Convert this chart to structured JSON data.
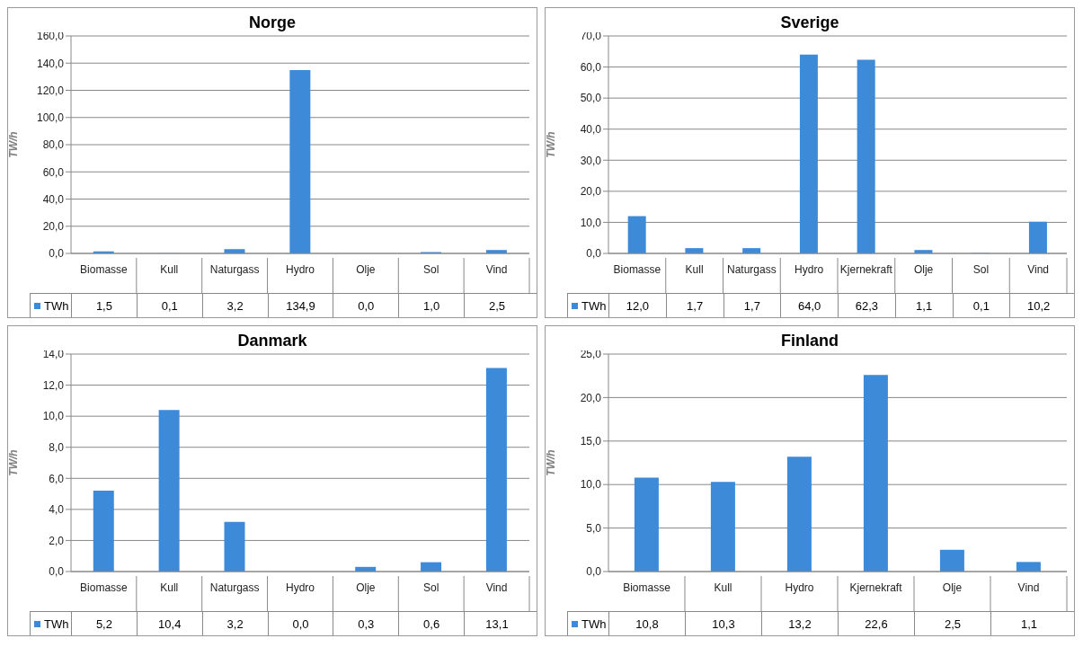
{
  "chart_data": [
    {
      "type": "bar",
      "title": "Norge",
      "ylabel": "TW/h",
      "categories": [
        "Biomasse",
        "Kull",
        "Naturgass",
        "Hydro",
        "Olje",
        "Sol",
        "Vind"
      ],
      "series": [
        {
          "name": "TWh",
          "color": "#3d8ad8",
          "values": [
            1.5,
            0.1,
            3.2,
            134.9,
            0.0,
            1.0,
            2.5
          ],
          "value_labels": [
            "1,5",
            "0,1",
            "3,2",
            "134,9",
            "0,0",
            "1,0",
            "2,5"
          ]
        }
      ],
      "ylim": [
        0,
        160
      ],
      "yticks": [
        {
          "value": 0,
          "label": "0,0"
        },
        {
          "value": 20,
          "label": "20,0"
        },
        {
          "value": 40,
          "label": "40,0"
        },
        {
          "value": 60,
          "label": "60,0"
        },
        {
          "value": 80,
          "label": "80,0"
        },
        {
          "value": 100,
          "label": "100,0"
        },
        {
          "value": 120,
          "label": "120,0"
        },
        {
          "value": 140,
          "label": "140,0"
        },
        {
          "value": 160,
          "label": "160,0"
        }
      ],
      "grid": "y",
      "legend": "bottom"
    },
    {
      "type": "bar",
      "title": "Sverige",
      "ylabel": "TW/h",
      "categories": [
        "Biomasse",
        "Kull",
        "Naturgass",
        "Hydro",
        "Kjernekraft",
        "Olje",
        "Sol",
        "Vind"
      ],
      "series": [
        {
          "name": "TWh",
          "color": "#3d8ad8",
          "values": [
            12.0,
            1.7,
            1.7,
            64.0,
            62.3,
            1.1,
            0.1,
            10.2
          ],
          "value_labels": [
            "12,0",
            "1,7",
            "1,7",
            "64,0",
            "62,3",
            "1,1",
            "0,1",
            "10,2"
          ]
        }
      ],
      "ylim": [
        0,
        70
      ],
      "yticks": [
        {
          "value": 0,
          "label": "0,0"
        },
        {
          "value": 10,
          "label": "10,0"
        },
        {
          "value": 20,
          "label": "20,0"
        },
        {
          "value": 30,
          "label": "30,0"
        },
        {
          "value": 40,
          "label": "40,0"
        },
        {
          "value": 50,
          "label": "50,0"
        },
        {
          "value": 60,
          "label": "60,0"
        },
        {
          "value": 70,
          "label": "70,0"
        }
      ],
      "grid": "y",
      "legend": "bottom"
    },
    {
      "type": "bar",
      "title": "Danmark",
      "ylabel": "TW/h",
      "categories": [
        "Biomasse",
        "Kull",
        "Naturgass",
        "Hydro",
        "Olje",
        "Sol",
        "Vind"
      ],
      "series": [
        {
          "name": "TWh",
          "color": "#3d8ad8",
          "values": [
            5.2,
            10.4,
            3.2,
            0.0,
            0.3,
            0.6,
            13.1
          ],
          "value_labels": [
            "5,2",
            "10,4",
            "3,2",
            "0,0",
            "0,3",
            "0,6",
            "13,1"
          ]
        }
      ],
      "ylim": [
        0,
        14
      ],
      "yticks": [
        {
          "value": 0,
          "label": "0,0"
        },
        {
          "value": 2,
          "label": "2,0"
        },
        {
          "value": 4,
          "label": "4,0"
        },
        {
          "value": 6,
          "label": "6,0"
        },
        {
          "value": 8,
          "label": "8,0"
        },
        {
          "value": 10,
          "label": "10,0"
        },
        {
          "value": 12,
          "label": "12,0"
        },
        {
          "value": 14,
          "label": "14,0"
        }
      ],
      "grid": "y",
      "legend": "bottom"
    },
    {
      "type": "bar",
      "title": "Finland",
      "ylabel": "TW/h",
      "categories": [
        "Biomasse",
        "Kull",
        "Hydro",
        "Kjernekraft",
        "Olje",
        "Vind"
      ],
      "series": [
        {
          "name": "TWh",
          "color": "#3d8ad8",
          "values": [
            10.8,
            10.3,
            13.2,
            22.6,
            2.5,
            1.1
          ],
          "value_labels": [
            "10,8",
            "10,3",
            "13,2",
            "22,6",
            "2,5",
            "1,1"
          ]
        }
      ],
      "ylim": [
        0,
        25
      ],
      "yticks": [
        {
          "value": 0,
          "label": "0,0"
        },
        {
          "value": 5,
          "label": "5,0"
        },
        {
          "value": 10,
          "label": "10,0"
        },
        {
          "value": 15,
          "label": "15,0"
        },
        {
          "value": 20,
          "label": "20,0"
        },
        {
          "value": 25,
          "label": "25,0"
        }
      ],
      "grid": "y",
      "legend": "bottom"
    }
  ]
}
